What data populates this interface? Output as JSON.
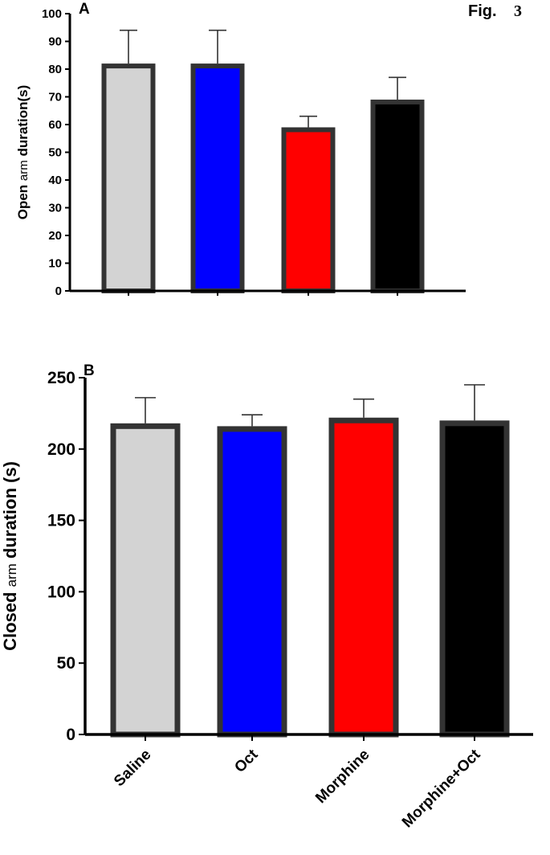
{
  "figure": {
    "label": "Fig.",
    "number": "3"
  },
  "chart_data": [
    {
      "type": "bar",
      "panel": "A",
      "categories": [
        "Saline",
        "Oct",
        "Morphine",
        "Morphine+Oct"
      ],
      "values": [
        82,
        82,
        59,
        69
      ],
      "errors": [
        12,
        12,
        4,
        8
      ],
      "colors": [
        "#d3d3d3",
        "#0000ff",
        "#ff0000",
        "#000000"
      ],
      "ylabel_parts": [
        "Open ",
        "arm",
        " duration(s)"
      ],
      "ylim": [
        0,
        100
      ],
      "yticks": [
        0,
        10,
        20,
        30,
        40,
        50,
        60,
        70,
        80,
        90,
        100
      ],
      "show_category_labels": false
    },
    {
      "type": "bar",
      "panel": "B",
      "categories": [
        "Saline",
        "Oct",
        "Morphine",
        "Morphine+Oct"
      ],
      "values": [
        218,
        216,
        222,
        220
      ],
      "errors": [
        18,
        8,
        13,
        25
      ],
      "colors": [
        "#d3d3d3",
        "#0000ff",
        "#ff0000",
        "#000000"
      ],
      "ylabel_parts": [
        "Closed ",
        "arm",
        " duration (s)"
      ],
      "ylim": [
        0,
        250
      ],
      "yticks": [
        0,
        50,
        100,
        150,
        200,
        250
      ],
      "show_category_labels": true
    }
  ]
}
